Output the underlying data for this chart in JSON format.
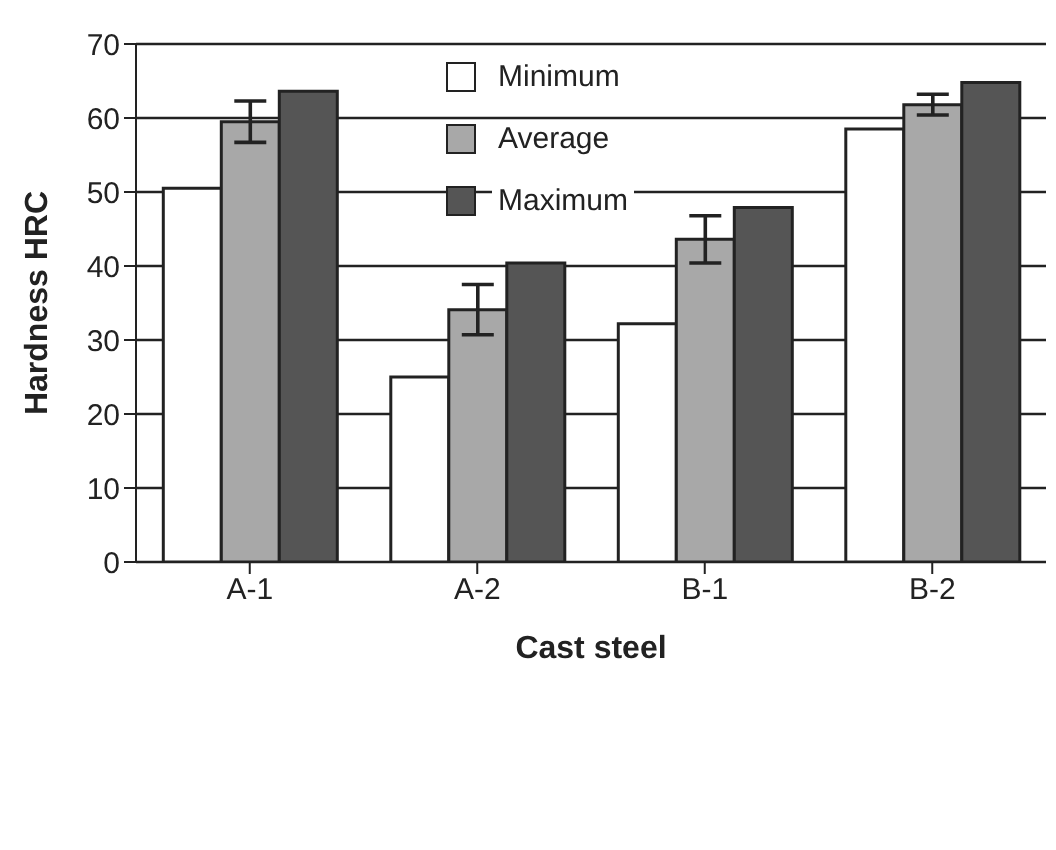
{
  "chart_data": {
    "type": "bar",
    "xlabel": "Cast steel",
    "ylabel": "Hardness HRC",
    "categories": [
      "A-1",
      "A-2",
      "B-1",
      "B-2"
    ],
    "series": [
      {
        "name": "Minimum",
        "color": "#ffffff",
        "values": [
          50.5,
          25,
          32.2,
          58.5
        ]
      },
      {
        "name": "Average",
        "color": "#a8a8a8",
        "values": [
          59.5,
          34.1,
          43.6,
          61.8
        ],
        "errors": [
          2.8,
          3.4,
          3.2,
          1.4
        ]
      },
      {
        "name": "Maximum",
        "color": "#555555",
        "values": [
          63.6,
          40.4,
          47.9,
          64.8
        ]
      }
    ],
    "ylim": [
      0,
      70
    ],
    "yticks": [
      0,
      10,
      20,
      30,
      40,
      50,
      60,
      70
    ],
    "grid": "y",
    "legend": "top"
  }
}
